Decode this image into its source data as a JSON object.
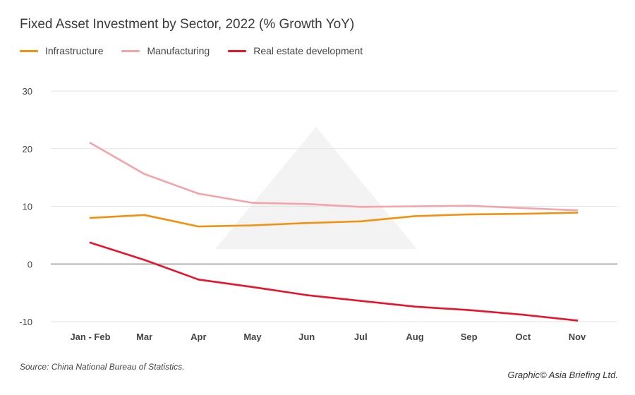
{
  "title": "Fixed Asset Investment by Sector, 2022 (% Growth YoY)",
  "source": "Source: China National Bureau of Statistics.",
  "credit": "Graphic© Asia Briefing Ltd.",
  "chart_data": {
    "type": "line",
    "title": "Fixed Asset Investment by Sector, 2022 (% Growth YoY)",
    "xlabel": "",
    "ylabel": "",
    "categories": [
      "Jan - Feb",
      "Mar",
      "Apr",
      "May",
      "Jun",
      "Jul",
      "Aug",
      "Sep",
      "Oct",
      "Nov"
    ],
    "ylim": [
      -10,
      30
    ],
    "yticks": [
      30,
      20,
      10,
      0,
      -10
    ],
    "grid": true,
    "legend_position": "top-left",
    "series": [
      {
        "name": "Infrastructure",
        "color": "#f0920f",
        "values": [
          8.0,
          8.5,
          6.5,
          6.7,
          7.1,
          7.4,
          8.3,
          8.6,
          8.7,
          8.9
        ]
      },
      {
        "name": "Manufacturing",
        "color": "#f4a3aa",
        "values": [
          21.0,
          15.6,
          12.2,
          10.6,
          10.4,
          9.9,
          10.0,
          10.1,
          9.7,
          9.3
        ]
      },
      {
        "name": "Real estate development",
        "color": "#e8142c",
        "values": [
          3.7,
          0.7,
          -2.7,
          -4.0,
          -5.4,
          -6.4,
          -7.4,
          -8.0,
          -8.8,
          -9.8
        ]
      }
    ]
  }
}
